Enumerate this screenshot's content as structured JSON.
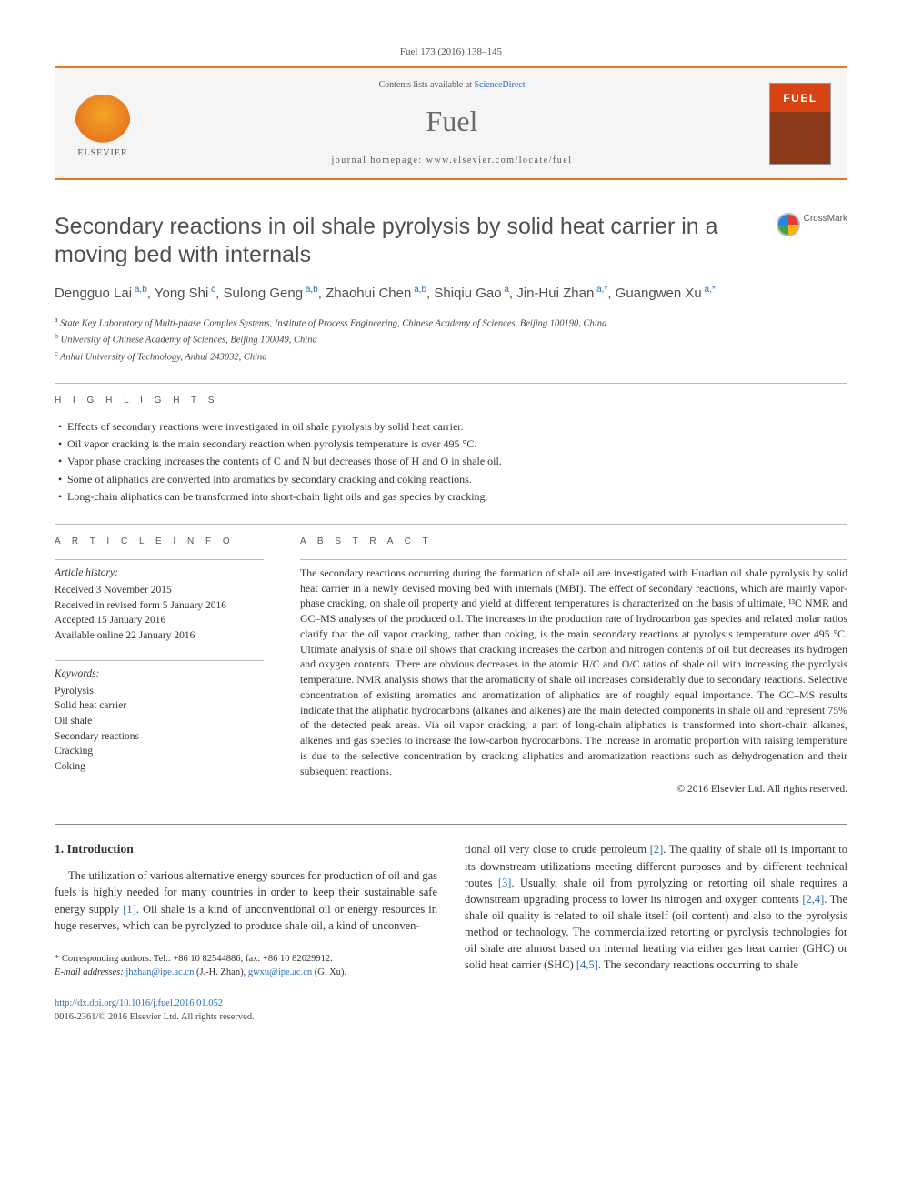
{
  "citation": "Fuel 173 (2016) 138–145",
  "header": {
    "contents_prefix": "Contents lists available at ",
    "contents_link": "ScienceDirect",
    "journal": "Fuel",
    "homepage_prefix": "journal homepage: ",
    "homepage_url": "www.elsevier.com/locate/fuel",
    "publisher": "ELSEVIER",
    "cover_label": "FUEL"
  },
  "crossmark": "CrossMark",
  "title": "Secondary reactions in oil shale pyrolysis by solid heat carrier in a moving bed with internals",
  "authors": [
    {
      "name": "Dengguo Lai",
      "sup": "a,b"
    },
    {
      "name": "Yong Shi",
      "sup": "c"
    },
    {
      "name": "Sulong Geng",
      "sup": "a,b"
    },
    {
      "name": "Zhaohui Chen",
      "sup": "a,b"
    },
    {
      "name": "Shiqiu Gao",
      "sup": "a"
    },
    {
      "name": "Jin-Hui Zhan",
      "sup": "a,*"
    },
    {
      "name": "Guangwen Xu",
      "sup": "a,*"
    }
  ],
  "affiliations": [
    {
      "sup": "a",
      "text": "State Key Laboratory of Multi-phase Complex Systems, Institute of Process Engineering, Chinese Academy of Sciences, Beijing 100190, China"
    },
    {
      "sup": "b",
      "text": "University of Chinese Academy of Sciences, Beijing 100049, China"
    },
    {
      "sup": "c",
      "text": "Anhui University of Technology, Anhui 243032, China"
    }
  ],
  "highlights_label": "H I G H L I G H T S",
  "highlights": [
    "Effects of secondary reactions were investigated in oil shale pyrolysis by solid heat carrier.",
    "Oil vapor cracking is the main secondary reaction when pyrolysis temperature is over 495 °C.",
    "Vapor phase cracking increases the contents of C and N but decreases those of H and O in shale oil.",
    "Some of aliphatics are converted into aromatics by secondary cracking and coking reactions.",
    "Long-chain aliphatics can be transformed into short-chain light oils and gas species by cracking."
  ],
  "info_label": "A R T I C L E   I N F O",
  "abstract_label": "A B S T R A C T",
  "history_head": "Article history:",
  "history": [
    "Received 3 November 2015",
    "Received in revised form 5 January 2016",
    "Accepted 15 January 2016",
    "Available online 22 January 2016"
  ],
  "keywords_head": "Keywords:",
  "keywords": [
    "Pyrolysis",
    "Solid heat carrier",
    "Oil shale",
    "Secondary reactions",
    "Cracking",
    "Coking"
  ],
  "abstract": "The secondary reactions occurring during the formation of shale oil are investigated with Huadian oil shale pyrolysis by solid heat carrier in a newly devised moving bed with internals (MBI). The effect of secondary reactions, which are mainly vapor-phase cracking, on shale oil property and yield at different temperatures is characterized on the basis of ultimate, ¹³C NMR and GC–MS analyses of the produced oil. The increases in the production rate of hydrocarbon gas species and related molar ratios clarify that the oil vapor cracking, rather than coking, is the main secondary reactions at pyrolysis temperature over 495 °C. Ultimate analysis of shale oil shows that cracking increases the carbon and nitrogen contents of oil but decreases its hydrogen and oxygen contents. There are obvious decreases in the atomic H/C and O/C ratios of shale oil with increasing the pyrolysis temperature. NMR analysis shows that the aromaticity of shale oil increases considerably due to secondary reactions. Selective concentration of existing aromatics and aromatization of aliphatics are of roughly equal importance. The GC–MS results indicate that the aliphatic hydrocarbons (alkanes and alkenes) are the main detected components in shale oil and represent 75% of the detected peak areas. Via oil vapor cracking, a part of long-chain aliphatics is transformed into short-chain alkanes, alkenes and gas species to increase the low-carbon hydrocarbons. The increase in aromatic proportion with raising temperature is due to the selective concentration by cracking aliphatics and aromatization reactions such as dehydrogenation and their subsequent reactions.",
  "copyright": "© 2016 Elsevier Ltd. All rights reserved.",
  "section1_head": "1. Introduction",
  "col_left": "The utilization of various alternative energy sources for production of oil and gas fuels is highly needed for many countries in order to keep their sustainable safe energy supply [1]. Oil shale is a kind of unconventional oil or energy resources in huge reserves, which can be pyrolyzed to produce shale oil, a kind of unconven-",
  "col_right": "tional oil very close to crude petroleum [2]. The quality of shale oil is important to its downstream utilizations meeting different purposes and by different technical routes [3]. Usually, shale oil from pyrolyzing or retorting oil shale requires a downstream upgrading process to lower its nitrogen and oxygen contents [2,4]. The shale oil quality is related to oil shale itself (oil content) and also to the pyrolysis method or technology. The commercialized retorting or pyrolysis technologies for oil shale are almost based on internal heating via either gas heat carrier (GHC) or solid heat carrier (SHC) [4,5]. The secondary reactions occurring to shale",
  "footnote_star": "* Corresponding authors. Tel.: +86 10 82544886; fax: +86 10 82629912.",
  "footnote_email_label": "E-mail addresses: ",
  "footnote_email1": "jhzhan@ipe.ac.cn",
  "footnote_email1_who": " (J.-H. Zhan), ",
  "footnote_email2": "gwxu@ipe.ac.cn",
  "footnote_email2_who": " (G. Xu).",
  "doi": "http://dx.doi.org/10.1016/j.fuel.2016.01.052",
  "issn_line": "0016-2361/© 2016 Elsevier Ltd. All rights reserved.",
  "colors": {
    "accent": "#e87722",
    "link": "#2a6ebb",
    "cover_top": "#d84315",
    "cover_bottom": "#8b3a1a",
    "text": "#333333",
    "muted": "#555555"
  }
}
